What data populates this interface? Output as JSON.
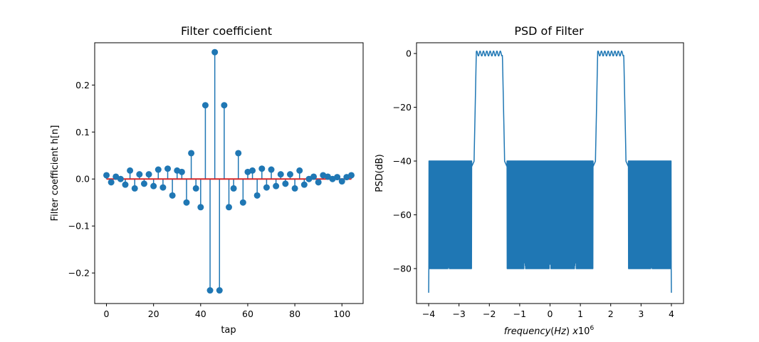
{
  "chart_data": [
    {
      "type": "stem",
      "title": "Filter coefficient",
      "xlabel": "tap",
      "ylabel": "Filter coefficient h[n]",
      "xlim": [
        -5,
        109
      ],
      "ylim": [
        -0.265,
        0.29
      ],
      "xticks": [
        0,
        20,
        40,
        60,
        80,
        100
      ],
      "xtick_labels": [
        "0",
        "20",
        "40",
        "60",
        "80",
        "100"
      ],
      "yticks": [
        -0.2,
        -0.1,
        0.0,
        0.1,
        0.2
      ],
      "ytick_labels": [
        "−0.2",
        "−0.1",
        "0.0",
        "0.1",
        "0.2"
      ],
      "colors": {
        "stem": "#1f77b4",
        "baseline": "#d62728"
      },
      "x": [
        0,
        2,
        4,
        6,
        8,
        10,
        12,
        14,
        16,
        18,
        20,
        22,
        24,
        26,
        28,
        30,
        32,
        34,
        36,
        38,
        40,
        42,
        44,
        46,
        48,
        50,
        52,
        54,
        56,
        58,
        60,
        62,
        64,
        66,
        68,
        70,
        72,
        74,
        76,
        78,
        80,
        82,
        84,
        86,
        88,
        90,
        92,
        94,
        96,
        98,
        100,
        102,
        104
      ],
      "values": [
        0.008,
        -0.007,
        0.005,
        0.0,
        -0.012,
        0.018,
        -0.02,
        0.01,
        -0.01,
        0.01,
        -0.015,
        0.02,
        -0.018,
        0.022,
        -0.035,
        0.018,
        0.015,
        -0.05,
        0.055,
        -0.02,
        -0.06,
        0.157,
        -0.237,
        0.27,
        -0.237,
        0.157,
        -0.06,
        -0.02,
        0.055,
        -0.05,
        0.015,
        0.018,
        -0.035,
        0.022,
        -0.018,
        0.02,
        -0.015,
        0.01,
        -0.01,
        0.01,
        -0.02,
        0.018,
        -0.012,
        0.0,
        0.005,
        -0.007,
        0.008,
        0.005,
        0.0,
        0.004,
        -0.005,
        0.004,
        0.008
      ]
    },
    {
      "type": "line",
      "title": "PSD of Filter",
      "xlabel": "frequency(Hz) x10^6",
      "ylabel": "PSD(dB)",
      "xlim": [
        -4.4,
        4.4
      ],
      "ylim": [
        -93,
        4
      ],
      "xticks": [
        -4,
        -3,
        -2,
        -1,
        0,
        1,
        2,
        3,
        4
      ],
      "xtick_labels": [
        "−4",
        "−3",
        "−2",
        "−1",
        "0",
        "1",
        "2",
        "3",
        "4"
      ],
      "yticks": [
        -80,
        -60,
        -40,
        -20,
        0
      ],
      "ytick_labels": [
        "−80",
        "−60",
        "−40",
        "−20",
        "0"
      ],
      "colors": {
        "line": "#1f77b4"
      },
      "passbands": [
        [
          -2.5,
          -1.5
        ],
        [
          1.5,
          2.5
        ]
      ],
      "passband_level_db": 0,
      "stopband_level_db": -40,
      "x": [
        -4.0,
        -3.0,
        -2.6,
        -2.5,
        -2.0,
        -1.5,
        -1.4,
        -1.0,
        0.0,
        1.0,
        1.4,
        1.5,
        2.0,
        2.5,
        2.6,
        3.0,
        4.0
      ],
      "values": [
        -89,
        -75,
        -59,
        -2,
        1,
        -2,
        -59,
        -82,
        -70,
        -82,
        -59,
        -2,
        1,
        -2,
        -59,
        -75,
        -89
      ]
    }
  ]
}
